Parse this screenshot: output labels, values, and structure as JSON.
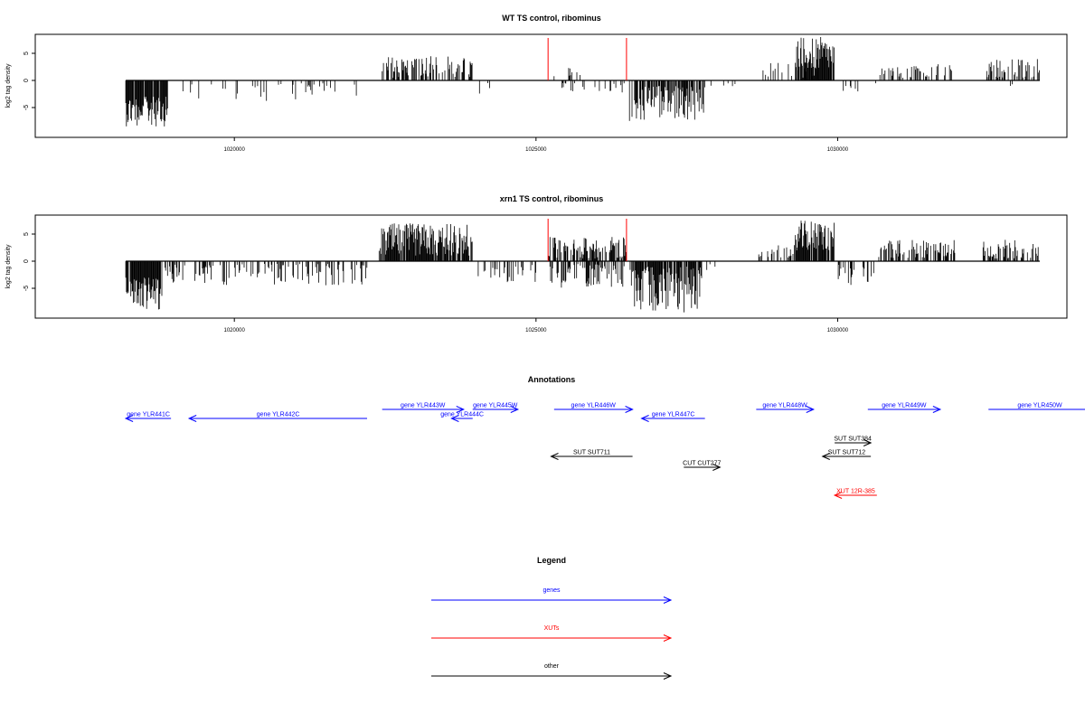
{
  "chart_data": [
    {
      "type": "bar",
      "title": "WT TS control, ribominus",
      "ylabel": "log2 tag density",
      "xlabel": "",
      "xlim": [
        1016700,
        1033800
      ],
      "ylim": [
        -10.5,
        8.5
      ],
      "x_ticks": [
        1020000,
        1025000,
        1030000
      ],
      "x_tick_labels": [
        "1020000",
        "1025000",
        "1030000"
      ],
      "y_ticks": [
        -5,
        0,
        5
      ],
      "y_tick_labels": [
        "-5",
        "0",
        "5"
      ],
      "markers": [
        1025200,
        1026500
      ],
      "marker_color": "#ff0000",
      "segments": [
        {
          "start": 1018200,
          "end": 1018900,
          "sign": -1,
          "min": 3.0,
          "max": 8.5,
          "density": 0.9
        },
        {
          "start": 1019000,
          "end": 1022100,
          "sign": -1,
          "min": 0.5,
          "max": 3.8,
          "density": 0.12
        },
        {
          "start": 1022450,
          "end": 1023950,
          "sign": 1,
          "min": 0.5,
          "max": 4.5,
          "density": 0.5
        },
        {
          "start": 1024000,
          "end": 1024350,
          "sign": -1,
          "min": 0.5,
          "max": 2.5,
          "density": 0.1
        },
        {
          "start": 1025300,
          "end": 1025800,
          "sign": 1,
          "min": 0.5,
          "max": 2.5,
          "density": 0.1
        },
        {
          "start": 1025400,
          "end": 1026500,
          "sign": -1,
          "min": 0.5,
          "max": 2.5,
          "density": 0.15
        },
        {
          "start": 1026550,
          "end": 1027800,
          "sign": -1,
          "min": 1.0,
          "max": 7.5,
          "density": 0.7
        },
        {
          "start": 1027700,
          "end": 1028300,
          "sign": -1,
          "min": 0.5,
          "max": 1.5,
          "density": 0.08
        },
        {
          "start": 1028700,
          "end": 1029700,
          "sign": 1,
          "min": 0.5,
          "max": 3.5,
          "density": 0.2
        },
        {
          "start": 1029300,
          "end": 1029950,
          "sign": 1,
          "min": 2.0,
          "max": 8.0,
          "density": 0.9
        },
        {
          "start": 1030000,
          "end": 1030650,
          "sign": -1,
          "min": 0.5,
          "max": 3.0,
          "density": 0.15
        },
        {
          "start": 1030700,
          "end": 1031900,
          "sign": 1,
          "min": 0.5,
          "max": 3.0,
          "density": 0.3
        },
        {
          "start": 1032450,
          "end": 1033350,
          "sign": 1,
          "min": 0.5,
          "max": 4.0,
          "density": 0.4
        },
        {
          "start": 1032600,
          "end": 1033100,
          "sign": -1,
          "min": 0.5,
          "max": 1.5,
          "density": 0.06
        }
      ]
    },
    {
      "type": "bar",
      "title": "xrn1 TS control, ribominus",
      "ylabel": "log2 tag density",
      "xlabel": "",
      "xlim": [
        1016700,
        1033800
      ],
      "ylim": [
        -10.5,
        8.5
      ],
      "x_ticks": [
        1020000,
        1025000,
        1030000
      ],
      "x_tick_labels": [
        "1020000",
        "1025000",
        "1030000"
      ],
      "y_ticks": [
        -5,
        0,
        5
      ],
      "y_tick_labels": [
        "-5",
        "0",
        "5"
      ],
      "markers": [
        1025200,
        1026500
      ],
      "marker_color": "#ff0000",
      "segments": [
        {
          "start": 1018200,
          "end": 1018800,
          "sign": -1,
          "min": 3.0,
          "max": 9.0,
          "density": 0.9
        },
        {
          "start": 1018850,
          "end": 1022200,
          "sign": -1,
          "min": 0.5,
          "max": 4.5,
          "density": 0.35
        },
        {
          "start": 1022400,
          "end": 1023950,
          "sign": 1,
          "min": 1.0,
          "max": 7.0,
          "density": 0.9
        },
        {
          "start": 1024000,
          "end": 1025000,
          "sign": -1,
          "min": 0.5,
          "max": 4.0,
          "density": 0.2
        },
        {
          "start": 1025200,
          "end": 1026500,
          "sign": 1,
          "min": 0.5,
          "max": 4.5,
          "density": 0.6
        },
        {
          "start": 1025200,
          "end": 1026500,
          "sign": -1,
          "min": 0.5,
          "max": 5.0,
          "density": 0.5
        },
        {
          "start": 1026550,
          "end": 1027750,
          "sign": -1,
          "min": 1.0,
          "max": 9.5,
          "density": 0.85
        },
        {
          "start": 1027800,
          "end": 1028000,
          "sign": -1,
          "min": 0.5,
          "max": 2.0,
          "density": 0.1
        },
        {
          "start": 1028650,
          "end": 1029400,
          "sign": 1,
          "min": 0.5,
          "max": 3.0,
          "density": 0.3
        },
        {
          "start": 1029300,
          "end": 1029950,
          "sign": 1,
          "min": 2.0,
          "max": 7.5,
          "density": 0.9
        },
        {
          "start": 1030000,
          "end": 1030600,
          "sign": -1,
          "min": 0.5,
          "max": 4.5,
          "density": 0.4
        },
        {
          "start": 1030650,
          "end": 1031950,
          "sign": 1,
          "min": 0.5,
          "max": 4.0,
          "density": 0.4
        },
        {
          "start": 1032400,
          "end": 1033350,
          "sign": 1,
          "min": 0.5,
          "max": 4.0,
          "density": 0.6
        }
      ]
    }
  ],
  "annotations": {
    "title": "Annotations",
    "features": [
      {
        "label": "gene YLR441C",
        "start": 1018200,
        "end": 1018950,
        "strand": "-",
        "row": 1,
        "type": "gene"
      },
      {
        "label": "gene YLR442C",
        "start": 1019250,
        "end": 1022200,
        "strand": "-",
        "row": 1,
        "type": "gene"
      },
      {
        "label": "gene YLR443W",
        "start": 1022450,
        "end": 1023800,
        "strand": "+",
        "row": 0,
        "type": "gene"
      },
      {
        "label": "gene YLR444C",
        "start": 1023600,
        "end": 1023950,
        "strand": "-",
        "row": 1,
        "type": "gene"
      },
      {
        "label": "gene YLR445W",
        "start": 1023950,
        "end": 1024700,
        "strand": "+",
        "row": 0,
        "type": "gene"
      },
      {
        "label": "gene YLR446W",
        "start": 1025300,
        "end": 1026600,
        "strand": "+",
        "row": 0,
        "type": "gene"
      },
      {
        "label": "gene YLR447C",
        "start": 1026750,
        "end": 1027800,
        "strand": "-",
        "row": 1,
        "type": "gene"
      },
      {
        "label": "gene YLR448W",
        "start": 1028650,
        "end": 1029600,
        "strand": "+",
        "row": 0,
        "type": "gene"
      },
      {
        "label": "gene YLR449W",
        "start": 1030500,
        "end": 1031700,
        "strand": "+",
        "row": 0,
        "type": "gene"
      },
      {
        "label": "gene YLR450W",
        "start": 1032500,
        "end": 1034200,
        "strand": "+",
        "row": 0,
        "type": "gene"
      },
      {
        "label": "SUT SUT711",
        "start": 1025250,
        "end": 1026600,
        "strand": "-",
        "row": 3,
        "type": "other"
      },
      {
        "label": "SUT SUT384",
        "start": 1029950,
        "end": 1030550,
        "strand": "+",
        "row": 2,
        "type": "other"
      },
      {
        "label": "SUT SUT712",
        "start": 1029750,
        "end": 1030550,
        "strand": "-",
        "row": 3,
        "type": "other"
      },
      {
        "label": "CUT CUT277",
        "start": 1027450,
        "end": 1028050,
        "strand": "+",
        "row": 4,
        "type": "other"
      },
      {
        "label": "XUT 12R-385",
        "start": 1029950,
        "end": 1030650,
        "strand": "-",
        "row": 5,
        "type": "xut"
      }
    ]
  },
  "legend": {
    "title": "Legend",
    "items": [
      {
        "label": "genes",
        "color": "#0000ff"
      },
      {
        "label": "XUTs",
        "color": "#ff0000"
      },
      {
        "label": "other",
        "color": "#000000"
      }
    ]
  },
  "colors": {
    "gene": "#0000ff",
    "xut": "#ff0000",
    "other": "#000000",
    "signal": "#000000"
  }
}
